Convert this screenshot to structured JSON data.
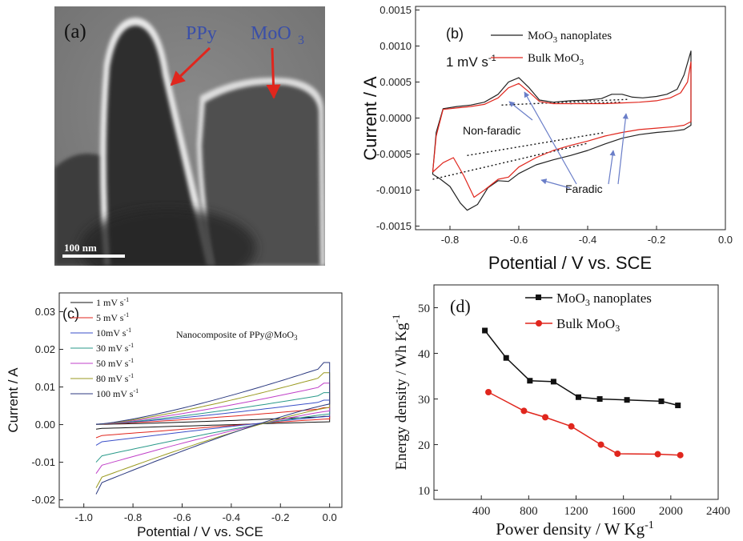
{
  "panel_a": {
    "label": "(a)",
    "ppy_label": "PPy",
    "moo3_label": "MoO",
    "moo3_sub": "3",
    "scale_bar_label": "100 nm",
    "annotation_color": "#3a4fa8",
    "arrow_color": "#e0261d"
  },
  "chart_data": [
    {
      "id": "b",
      "type": "line",
      "panel_label": "(b)",
      "xlabel": "Potential / V vs. SCE",
      "ylabel": "Current / A",
      "xlim": [
        -0.9,
        0.0
      ],
      "ylim": [
        -0.00155,
        0.00155
      ],
      "xticks": [
        "-0.8",
        "-0.6",
        "-0.4",
        "-0.2",
        "0.0"
      ],
      "xtick_values": [
        -0.8,
        -0.6,
        -0.4,
        -0.2,
        0.0
      ],
      "yticks": [
        "0.0015",
        "0.0010",
        "0.0005",
        "0.0000",
        "-0.0005",
        "-0.0010",
        "-0.0015"
      ],
      "ytick_values": [
        0.0015,
        0.001,
        0.0005,
        0.0,
        -0.0005,
        -0.001,
        -0.0015
      ],
      "scan_rate_label": "1 mV s",
      "scan_rate_sup": "-1",
      "legend_position": "top-right",
      "annotations": {
        "non_faradic": "Non-faradic",
        "faradic": "Faradic"
      },
      "series": [
        {
          "name": "MoO3 nanoplates",
          "name_main": "MoO",
          "name_sub": "3",
          "name_rest": " nanoplates",
          "color": "#222222",
          "x": [
            -0.85,
            -0.84,
            -0.82,
            -0.78,
            -0.74,
            -0.7,
            -0.66,
            -0.63,
            -0.6,
            -0.57,
            -0.54,
            -0.5,
            -0.45,
            -0.4,
            -0.36,
            -0.33,
            -0.3,
            -0.27,
            -0.24,
            -0.2,
            -0.17,
            -0.14,
            -0.12,
            -0.1,
            -0.1,
            -0.12,
            -0.15,
            -0.2,
            -0.25,
            -0.3,
            -0.35,
            -0.4,
            -0.45,
            -0.5,
            -0.55,
            -0.6,
            -0.63,
            -0.66,
            -0.69,
            -0.72,
            -0.75,
            -0.77,
            -0.8,
            -0.83,
            -0.85
          ],
          "y": [
            -0.00075,
            -0.0002,
            0.00013,
            0.00016,
            0.00018,
            0.00022,
            0.00033,
            0.0005,
            0.00056,
            0.00042,
            0.00025,
            0.00022,
            0.00024,
            0.00025,
            0.00027,
            0.00033,
            0.00033,
            0.00029,
            0.00028,
            0.0003,
            0.00033,
            0.0004,
            0.0006,
            0.00093,
            -0.0001,
            -0.00016,
            -0.00018,
            -0.0002,
            -0.00023,
            -0.00028,
            -0.00036,
            -0.00045,
            -0.00052,
            -0.00058,
            -0.00065,
            -0.00077,
            -0.00088,
            -0.00087,
            -0.00097,
            -0.0012,
            -0.00128,
            -0.00118,
            -0.00095,
            -0.00084,
            -0.00078
          ]
        },
        {
          "name": "Bulk MoO3",
          "name_main": "Bulk MoO",
          "name_sub": "3",
          "name_rest": "",
          "color": "#e0261d",
          "x": [
            -0.85,
            -0.84,
            -0.82,
            -0.78,
            -0.74,
            -0.7,
            -0.66,
            -0.63,
            -0.6,
            -0.57,
            -0.54,
            -0.5,
            -0.45,
            -0.4,
            -0.35,
            -0.3,
            -0.25,
            -0.2,
            -0.16,
            -0.13,
            -0.11,
            -0.1,
            -0.1,
            -0.12,
            -0.15,
            -0.2,
            -0.25,
            -0.3,
            -0.35,
            -0.4,
            -0.45,
            -0.5,
            -0.55,
            -0.6,
            -0.63,
            -0.66,
            -0.7,
            -0.73,
            -0.76,
            -0.79,
            -0.82,
            -0.85
          ],
          "y": [
            -0.00075,
            -0.00025,
            0.00012,
            0.00014,
            0.00016,
            0.00019,
            0.00028,
            0.00042,
            0.00048,
            0.00036,
            0.00023,
            0.0002,
            0.0002,
            0.0002,
            0.0002,
            0.00021,
            0.00022,
            0.00024,
            0.00028,
            0.00035,
            0.0005,
            0.00078,
            -5e-05,
            -0.0001,
            -0.00012,
            -0.00014,
            -0.00016,
            -0.0002,
            -0.00025,
            -0.00032,
            -0.00038,
            -0.00045,
            -0.00055,
            -0.00068,
            -0.00082,
            -0.00085,
            -0.001,
            -0.0011,
            -0.0008,
            -0.00055,
            -0.00062,
            -0.00075
          ]
        }
      ]
    },
    {
      "id": "c",
      "type": "line",
      "panel_label": "(c)",
      "xlabel": "Potential / V vs. SCE",
      "ylabel": "Current / A",
      "xlim": [
        -1.1,
        0.05
      ],
      "ylim": [
        -0.022,
        0.035
      ],
      "xticks": [
        "-1.0",
        "-0.8",
        "-0.6",
        "-0.4",
        "-0.2",
        "0.0"
      ],
      "xtick_values": [
        -1.0,
        -0.8,
        -0.6,
        -0.4,
        -0.2,
        0.0
      ],
      "yticks": [
        "0.03",
        "0.02",
        "0.01",
        "0.00",
        "-0.01",
        "-0.02"
      ],
      "ytick_values": [
        0.03,
        0.02,
        0.01,
        0.0,
        -0.01,
        -0.02
      ],
      "annotation_main": "Nanocomposite of PPy@MoO",
      "annotation_sub": "3",
      "legend_position": "top-left",
      "series": [
        {
          "name": "1 mV s",
          "sup": "-1",
          "color": "#111111",
          "amp": 0.001,
          "ymax": 0.0022,
          "ymin": -0.0012
        },
        {
          "name": "5 mV s",
          "sup": "-1",
          "color": "#e0261d",
          "amp": 0.0022,
          "ymax": 0.0045,
          "ymin": -0.0035
        },
        {
          "name": "10mV s",
          "sup": "-1",
          "color": "#3a4fc8",
          "amp": 0.0038,
          "ymax": 0.0065,
          "ymin": -0.0055
        },
        {
          "name": "30 mV s",
          "sup": "-1",
          "color": "#2a9a8a",
          "amp": 0.0068,
          "ymax": 0.0085,
          "ymin": -0.01
        },
        {
          "name": "50 mV s",
          "sup": "-1",
          "color": "#c040c8",
          "amp": 0.0095,
          "ymax": 0.011,
          "ymin": -0.013
        },
        {
          "name": "80 mV s",
          "sup": "-1",
          "color": "#9a9a20",
          "amp": 0.0125,
          "ymax": 0.0138,
          "ymin": -0.0168
        },
        {
          "name": "100 mV s",
          "sup": "-1",
          "color": "#2c3a80",
          "amp": 0.015,
          "ymax": 0.0165,
          "ymin": -0.0185
        }
      ]
    },
    {
      "id": "d",
      "type": "line",
      "panel_label": "(d)",
      "xlabel": "Power density / W Kg",
      "xlabel_sup": "-1",
      "ylabel": "Energy density / Wh Kg",
      "ylabel_sup": "-1",
      "xlim": [
        0,
        2400
      ],
      "ylim": [
        8,
        55
      ],
      "xticks": [
        "400",
        "800",
        "1200",
        "1600",
        "2000",
        "2400"
      ],
      "xtick_values": [
        400,
        800,
        1200,
        1600,
        2000,
        2400
      ],
      "yticks": [
        "10",
        "20",
        "30",
        "40",
        "50"
      ],
      "ytick_values": [
        10,
        20,
        30,
        40,
        50
      ],
      "legend_position": "top-right",
      "series": [
        {
          "name": "MoO3 nanoplates",
          "name_main": "MoO",
          "name_sub": "3",
          "name_rest": " nanoplates",
          "color": "#111111",
          "marker": "square",
          "x": [
            430,
            610,
            810,
            1010,
            1220,
            1400,
            1630,
            1920,
            2060
          ],
          "y": [
            45,
            39,
            34,
            33.8,
            30.4,
            30,
            29.8,
            29.5,
            28.6
          ]
        },
        {
          "name": "Bulk MoO3",
          "name_main": "Bulk MoO",
          "name_sub": "3",
          "name_rest": "",
          "color": "#e0261d",
          "marker": "circle",
          "x": [
            460,
            760,
            940,
            1160,
            1410,
            1550,
            1890,
            2080
          ],
          "y": [
            31.5,
            27.4,
            26,
            24,
            20,
            18,
            17.9,
            17.7
          ]
        }
      ]
    }
  ]
}
